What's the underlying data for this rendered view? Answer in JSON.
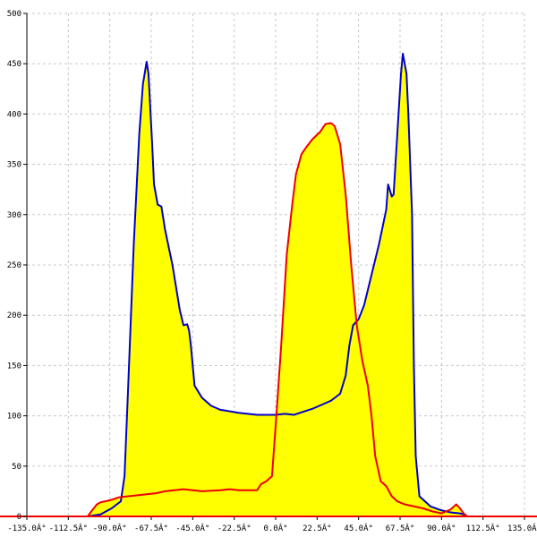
{
  "chart_data": {
    "type": "area",
    "xlim": [
      -135,
      135
    ],
    "ylim": [
      0,
      500
    ],
    "grid": true,
    "x_ticks": [
      -135,
      -112.5,
      -90,
      -67.5,
      -45,
      -22.5,
      0,
      22.5,
      45,
      67.5,
      90,
      112.5,
      135
    ],
    "x_tick_labels": [
      "-135.0Â°",
      "-112.5Â°",
      "-90.0Â°",
      "-67.5Â°",
      "-45.0Â°",
      "-22.5Â°",
      "0.0Â°",
      "22.5Â°",
      "45.0Â°",
      "67.5Â°",
      "90.0Â°",
      "112.5Â°",
      "135.0Â°"
    ],
    "y_ticks": [
      0,
      50,
      100,
      150,
      200,
      250,
      300,
      350,
      400,
      450,
      500
    ],
    "y_tick_labels": [
      "0",
      "50",
      "100",
      "150",
      "200",
      "250",
      "300",
      "350",
      "400",
      "450",
      "500"
    ],
    "fill_color": "#ffff00",
    "series": [
      {
        "color": "#0000cc",
        "points": [
          [
            -102,
            0
          ],
          [
            -95,
            2
          ],
          [
            -89,
            8
          ],
          [
            -84,
            15
          ],
          [
            -82,
            40
          ],
          [
            -80,
            130
          ],
          [
            -77,
            270
          ],
          [
            -74,
            380
          ],
          [
            -72,
            430
          ],
          [
            -70,
            452
          ],
          [
            -69,
            440
          ],
          [
            -67,
            370
          ],
          [
            -66,
            330
          ],
          [
            -64,
            310
          ],
          [
            -62,
            308
          ],
          [
            -60,
            285
          ],
          [
            -56,
            250
          ],
          [
            -52,
            205
          ],
          [
            -50,
            190
          ],
          [
            -48,
            191
          ],
          [
            -47,
            185
          ],
          [
            -46,
            170
          ],
          [
            -45,
            150
          ],
          [
            -44,
            130
          ],
          [
            -40,
            118
          ],
          [
            -35,
            110
          ],
          [
            -30,
            106
          ],
          [
            -20,
            103
          ],
          [
            -10,
            101
          ],
          [
            0,
            101
          ],
          [
            5,
            102
          ],
          [
            10,
            101
          ],
          [
            15,
            104
          ],
          [
            20,
            107
          ],
          [
            25,
            111
          ],
          [
            30,
            115
          ],
          [
            35,
            122
          ],
          [
            38,
            140
          ],
          [
            40,
            170
          ],
          [
            42,
            190
          ],
          [
            45,
            196
          ],
          [
            48,
            210
          ],
          [
            52,
            240
          ],
          [
            56,
            270
          ],
          [
            60,
            305
          ],
          [
            61,
            330
          ],
          [
            63,
            318
          ],
          [
            64,
            320
          ],
          [
            66,
            380
          ],
          [
            68,
            440
          ],
          [
            69,
            460
          ],
          [
            71,
            440
          ],
          [
            72,
            400
          ],
          [
            74,
            300
          ],
          [
            75,
            150
          ],
          [
            76,
            60
          ],
          [
            78,
            20
          ],
          [
            84,
            10
          ],
          [
            90,
            6
          ],
          [
            95,
            4
          ],
          [
            100,
            3
          ],
          [
            102,
            2
          ],
          [
            104,
            0
          ]
        ]
      },
      {
        "color": "#ee0000",
        "points": [
          [
            -102,
            0
          ],
          [
            -100,
            5
          ],
          [
            -97,
            12
          ],
          [
            -95,
            14
          ],
          [
            -90,
            16
          ],
          [
            -85,
            19
          ],
          [
            -80,
            20
          ],
          [
            -75,
            21
          ],
          [
            -70,
            22
          ],
          [
            -65,
            23
          ],
          [
            -60,
            25
          ],
          [
            -50,
            27
          ],
          [
            -40,
            25
          ],
          [
            -30,
            26
          ],
          [
            -25,
            27
          ],
          [
            -20,
            26
          ],
          [
            -10,
            26
          ],
          [
            -8,
            32
          ],
          [
            -5,
            35
          ],
          [
            -2,
            40
          ],
          [
            0,
            90
          ],
          [
            3,
            170
          ],
          [
            6,
            260
          ],
          [
            9,
            310
          ],
          [
            11,
            340
          ],
          [
            14,
            360
          ],
          [
            17,
            368
          ],
          [
            20,
            375
          ],
          [
            24,
            382
          ],
          [
            27,
            390
          ],
          [
            30,
            391
          ],
          [
            32,
            388
          ],
          [
            35,
            370
          ],
          [
            38,
            320
          ],
          [
            41,
            250
          ],
          [
            44,
            190
          ],
          [
            47,
            155
          ],
          [
            50,
            130
          ],
          [
            52,
            100
          ],
          [
            54,
            60
          ],
          [
            57,
            35
          ],
          [
            60,
            30
          ],
          [
            63,
            20
          ],
          [
            66,
            15
          ],
          [
            70,
            12
          ],
          [
            75,
            10
          ],
          [
            80,
            8
          ],
          [
            85,
            5
          ],
          [
            90,
            3
          ],
          [
            95,
            7
          ],
          [
            98,
            12
          ],
          [
            100,
            8
          ],
          [
            102,
            3
          ],
          [
            104,
            0
          ]
        ]
      }
    ]
  }
}
